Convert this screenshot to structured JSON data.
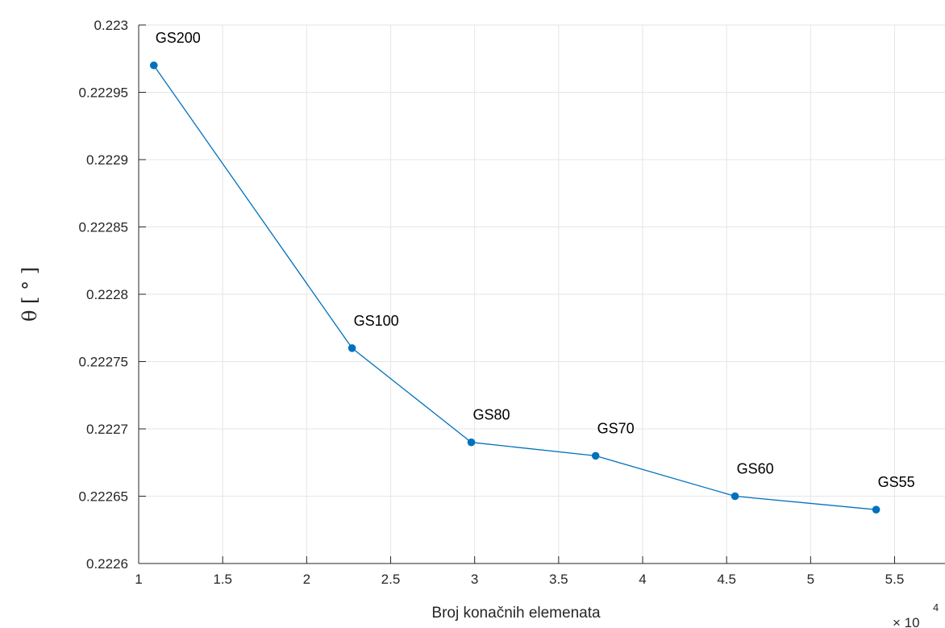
{
  "chart_data": {
    "type": "line",
    "title": "",
    "xlabel": "Broj konačnih elemenata",
    "ylabel": "θ [ ° ]",
    "x_exponent_label": "× 10",
    "x_exponent_power": "4",
    "xlim": [
      1,
      5.8
    ],
    "ylim": [
      0.2226,
      0.223
    ],
    "x_ticks": [
      1,
      1.5,
      2,
      2.5,
      3,
      3.5,
      4,
      4.5,
      5,
      5.5
    ],
    "x_tick_labels": [
      "1",
      "1.5",
      "2",
      "2.5",
      "3",
      "3.5",
      "4",
      "4.5",
      "5",
      "5.5"
    ],
    "y_ticks": [
      0.2226,
      0.22265,
      0.2227,
      0.22275,
      0.2228,
      0.22285,
      0.2229,
      0.22295,
      0.223
    ],
    "y_tick_labels": [
      "0.2226",
      "0.22265",
      "0.2227",
      "0.22275",
      "0.2228",
      "0.22285",
      "0.2229",
      "0.22295",
      "0.223"
    ],
    "grid": true,
    "color": "#0072bd",
    "series": [
      {
        "x": [
          1.09,
          2.27,
          2.98,
          3.72,
          4.55,
          5.39
        ],
        "y": [
          0.22297,
          0.22276,
          0.22269,
          0.22268,
          0.22265,
          0.22264
        ],
        "labels": [
          "GS200",
          "GS100",
          "GS80",
          "GS70",
          "GS60",
          "GS55"
        ]
      }
    ]
  }
}
